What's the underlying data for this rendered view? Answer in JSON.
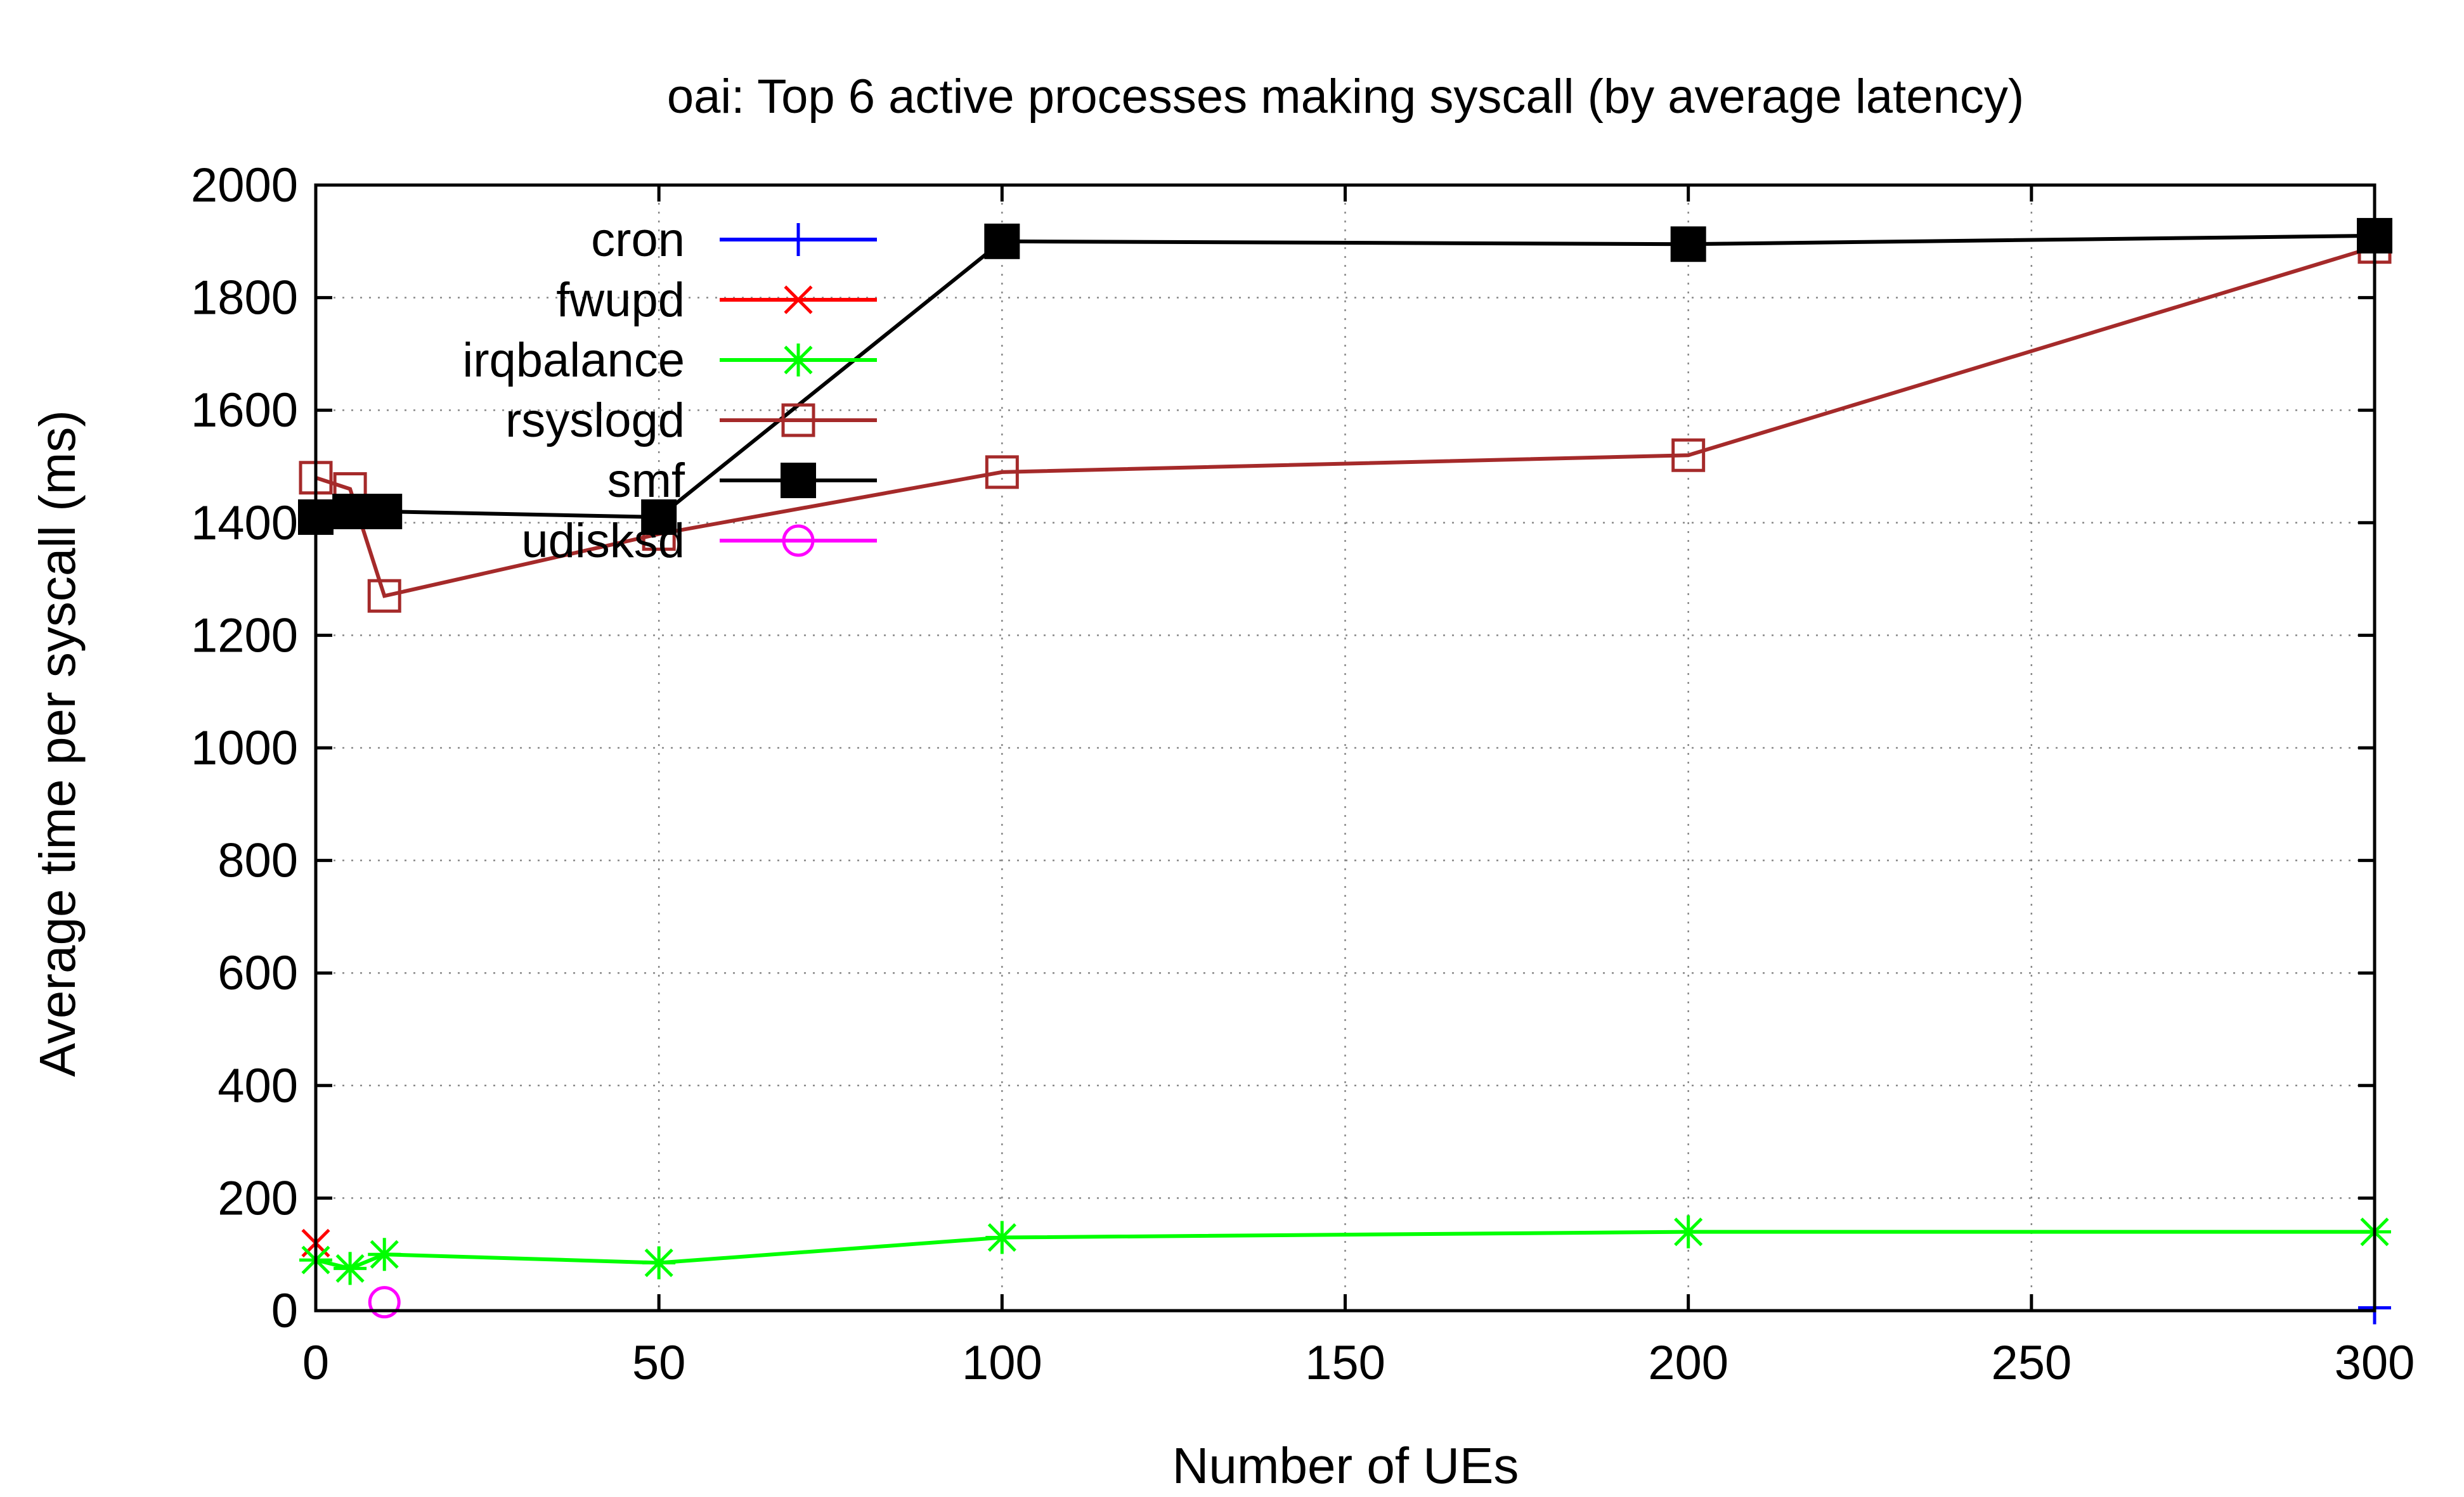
{
  "chart_data": {
    "type": "line",
    "title": "oai: Top 6 active processes making syscall (by average latency)",
    "xlabel": "Number of UEs",
    "ylabel": "Average time per syscall (ms)",
    "xlim": [
      0,
      300
    ],
    "ylim": [
      0,
      2000
    ],
    "xticks": [
      0,
      50,
      100,
      150,
      200,
      250,
      300
    ],
    "yticks": [
      0,
      200,
      400,
      600,
      800,
      1000,
      1200,
      1400,
      1600,
      1800,
      2000
    ],
    "grid": true,
    "legend_position": "top-left",
    "series": [
      {
        "name": "cron",
        "color": "#0000ff",
        "marker": "plus",
        "points": [
          [
            300,
            5
          ]
        ]
      },
      {
        "name": "fwupd",
        "color": "#ff0000",
        "marker": "cross",
        "points": [
          [
            0,
            120
          ]
        ]
      },
      {
        "name": "irqbalance",
        "color": "#00ff00",
        "marker": "star",
        "points": [
          [
            0,
            90
          ],
          [
            5,
            75
          ],
          [
            10,
            100
          ],
          [
            50,
            85
          ],
          [
            100,
            130
          ],
          [
            200,
            140
          ],
          [
            300,
            140
          ]
        ]
      },
      {
        "name": "rsyslogd",
        "color": "#a52a2a",
        "marker": "open-square",
        "points": [
          [
            0,
            1480
          ],
          [
            5,
            1460
          ],
          [
            10,
            1270
          ],
          [
            50,
            1380
          ],
          [
            100,
            1490
          ],
          [
            200,
            1520
          ],
          [
            300,
            1890
          ]
        ]
      },
      {
        "name": "smf",
        "color": "#000000",
        "marker": "filled-square",
        "points": [
          [
            0,
            1410
          ],
          [
            5,
            1420
          ],
          [
            10,
            1420
          ],
          [
            50,
            1410
          ],
          [
            100,
            1900
          ],
          [
            200,
            1895
          ],
          [
            300,
            1910
          ]
        ]
      },
      {
        "name": "udisksd",
        "color": "#ff00ff",
        "marker": "open-circle",
        "points": [
          [
            10,
            15
          ]
        ]
      }
    ]
  }
}
